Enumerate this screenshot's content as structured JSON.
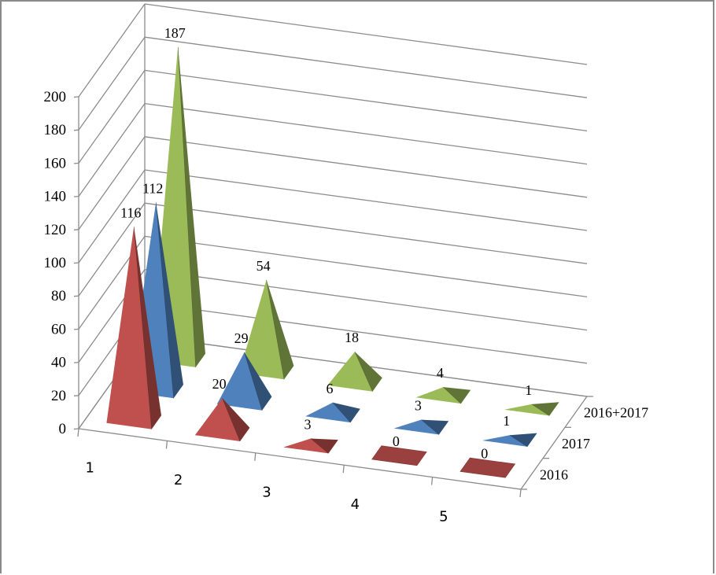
{
  "chart_data": {
    "type": "bar",
    "subtype": "3d-pyramid",
    "title": "",
    "categories": [
      "1",
      "2",
      "3",
      "4",
      "5"
    ],
    "yticks": [
      "0",
      "20",
      "40",
      "60",
      "80",
      "100",
      "120",
      "140",
      "160",
      "180",
      "200"
    ],
    "ylim": [
      0,
      200
    ],
    "grid": true,
    "series": [
      {
        "name": "2016",
        "values": [
          116,
          20,
          3,
          0,
          0
        ],
        "color": "#c0504d"
      },
      {
        "name": "2017",
        "values": [
          112,
          29,
          6,
          3,
          1
        ],
        "color": "#4f81bd"
      },
      {
        "name": "2016+2017",
        "values": [
          187,
          54,
          18,
          4,
          1
        ],
        "color": "#9bbb59"
      }
    ]
  }
}
